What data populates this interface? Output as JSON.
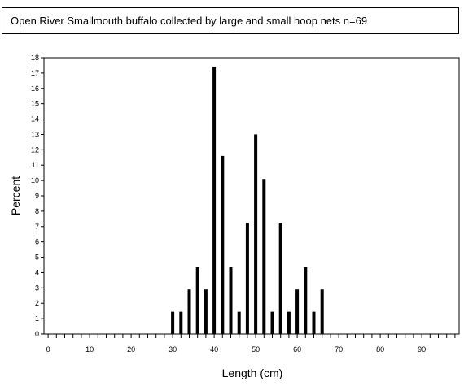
{
  "chart_data": {
    "type": "bar",
    "title": "Open River Smallmouth buffalo collected by large and small hoop nets   n=69",
    "xlabel": "Length (cm)",
    "ylabel": "Percent",
    "xlim": [
      -1,
      99
    ],
    "ylim": [
      0,
      18
    ],
    "x_ticks": [
      0,
      10,
      20,
      30,
      40,
      50,
      60,
      70,
      80,
      90
    ],
    "y_ticks": [
      0,
      1,
      2,
      3,
      4,
      5,
      6,
      7,
      8,
      9,
      10,
      11,
      12,
      13,
      14,
      15,
      16,
      17,
      18
    ],
    "grid": false,
    "x": [
      30,
      32,
      34,
      36,
      38,
      40,
      42,
      44,
      46,
      48,
      50,
      52,
      54,
      56,
      58,
      60,
      62,
      64,
      66
    ],
    "values": [
      1.45,
      1.45,
      2.9,
      4.35,
      2.9,
      17.4,
      11.6,
      4.35,
      1.45,
      7.25,
      13.0,
      10.1,
      1.45,
      7.25,
      1.45,
      2.9,
      4.35,
      1.45,
      2.9
    ]
  }
}
